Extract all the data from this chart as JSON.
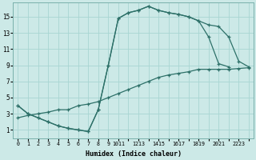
{
  "background_color": "#cce9e7",
  "grid_color": "#a8d5d2",
  "line_color": "#2d7068",
  "xlabel": "Humidex (Indice chaleur)",
  "curve1_x": [
    0,
    1,
    2,
    3,
    4,
    5,
    6,
    7,
    8,
    9,
    10,
    11,
    12,
    13,
    14,
    15,
    16,
    17,
    18,
    19,
    20,
    21
  ],
  "curve1_y": [
    4.0,
    3.0,
    2.5,
    2.0,
    1.5,
    1.2,
    1.0,
    0.8,
    3.5,
    9.0,
    14.8,
    15.5,
    15.8,
    16.3,
    15.8,
    15.5,
    15.3,
    15.0,
    14.5,
    12.5,
    9.2,
    8.8
  ],
  "curve2_x": [
    0,
    1,
    2,
    3,
    4,
    5,
    6,
    7,
    8,
    9,
    10,
    11,
    12,
    13,
    14,
    15,
    16,
    17,
    18,
    19,
    20,
    21,
    22,
    23
  ],
  "curve2_y": [
    4.0,
    3.0,
    2.5,
    2.0,
    1.5,
    1.2,
    1.0,
    0.8,
    3.5,
    9.0,
    14.8,
    15.5,
    15.8,
    16.3,
    15.8,
    15.5,
    15.3,
    15.0,
    14.5,
    14.0,
    13.8,
    12.5,
    9.5,
    8.8
  ],
  "curve3_x": [
    0,
    1,
    2,
    3,
    4,
    5,
    6,
    7,
    8,
    9,
    10,
    11,
    12,
    13,
    14,
    15,
    16,
    17,
    18,
    19,
    20,
    21,
    22,
    23
  ],
  "curve3_y": [
    2.5,
    2.8,
    3.0,
    3.2,
    3.5,
    3.5,
    4.0,
    4.2,
    4.5,
    5.0,
    5.5,
    6.0,
    6.5,
    7.0,
    7.5,
    7.8,
    8.0,
    8.2,
    8.5,
    8.5,
    8.5,
    8.5,
    8.6,
    8.7
  ],
  "xlim": [
    -0.5,
    23.5
  ],
  "ylim": [
    0.0,
    16.8
  ],
  "yticks": [
    1,
    3,
    5,
    7,
    9,
    11,
    13,
    15
  ],
  "xtick_positions": [
    0,
    1,
    2,
    3,
    4,
    5,
    6,
    7,
    8,
    9,
    10,
    11,
    12,
    13,
    14,
    15,
    16,
    17,
    18,
    19,
    20,
    21,
    22,
    23
  ],
  "xtick_labels": [
    "0",
    "1",
    "2",
    "3",
    "4",
    "5",
    "6",
    "7",
    "8",
    "9",
    "1011",
    "",
    "1213",
    "",
    "1415",
    "",
    "1617",
    "",
    "1819",
    "",
    "2021",
    "",
    "2223",
    ""
  ]
}
